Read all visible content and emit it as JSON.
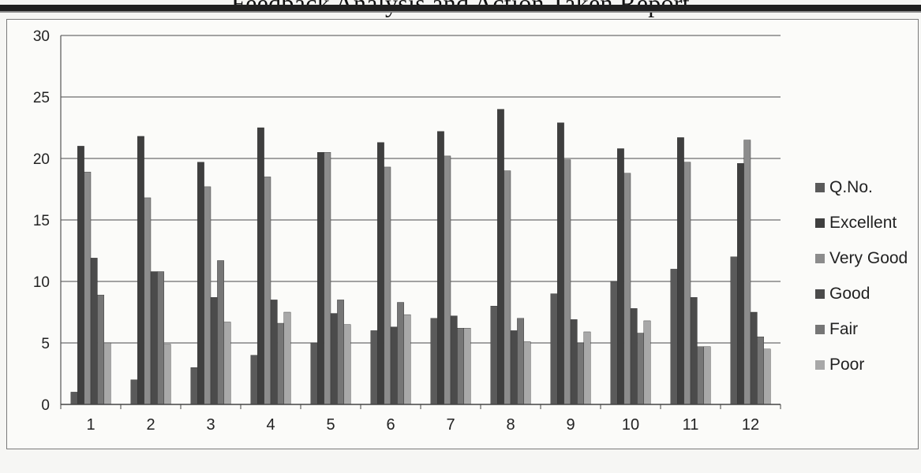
{
  "page": {
    "title": "Feedback Analysis and Action Taken Report"
  },
  "chart_data": {
    "type": "bar",
    "categories": [
      "1",
      "2",
      "3",
      "4",
      "5",
      "6",
      "7",
      "8",
      "9",
      "10",
      "11",
      "12"
    ],
    "series": [
      {
        "name": "Q.No.",
        "color": "#5a5a5a",
        "values": [
          1,
          2,
          3,
          4,
          5,
          6,
          7,
          8,
          9,
          10,
          11,
          12
        ]
      },
      {
        "name": "Excellent",
        "color": "#3f3f3f",
        "values": [
          21,
          21.8,
          19.7,
          22.5,
          20.5,
          21.3,
          22.2,
          24,
          22.9,
          20.8,
          21.7,
          19.6
        ]
      },
      {
        "name": "Very Good",
        "color": "#8c8c8c",
        "values": [
          18.9,
          16.8,
          17.7,
          18.5,
          20.5,
          19.3,
          20.2,
          19,
          19.9,
          18.8,
          19.7,
          21.5
        ]
      },
      {
        "name": "Good",
        "color": "#4b4b4b",
        "values": [
          11.9,
          10.8,
          8.7,
          8.5,
          7.4,
          6.3,
          7.2,
          6,
          6.9,
          7.8,
          8.7,
          7.5
        ]
      },
      {
        "name": "Fair",
        "color": "#767676",
        "values": [
          8.9,
          10.8,
          11.7,
          6.6,
          8.5,
          8.3,
          6.2,
          7,
          5,
          5.8,
          4.7,
          5.5
        ]
      },
      {
        "name": "Poor",
        "color": "#a8a8a8",
        "values": [
          5,
          4.9,
          6.7,
          7.5,
          6.5,
          7.3,
          6.2,
          5.1,
          5.9,
          6.8,
          4.7,
          4.5
        ]
      }
    ],
    "ylim": [
      0,
      30
    ],
    "yticks": [
      0,
      5,
      10,
      15,
      20,
      25,
      30
    ],
    "grid": true,
    "legend_position": "right"
  }
}
